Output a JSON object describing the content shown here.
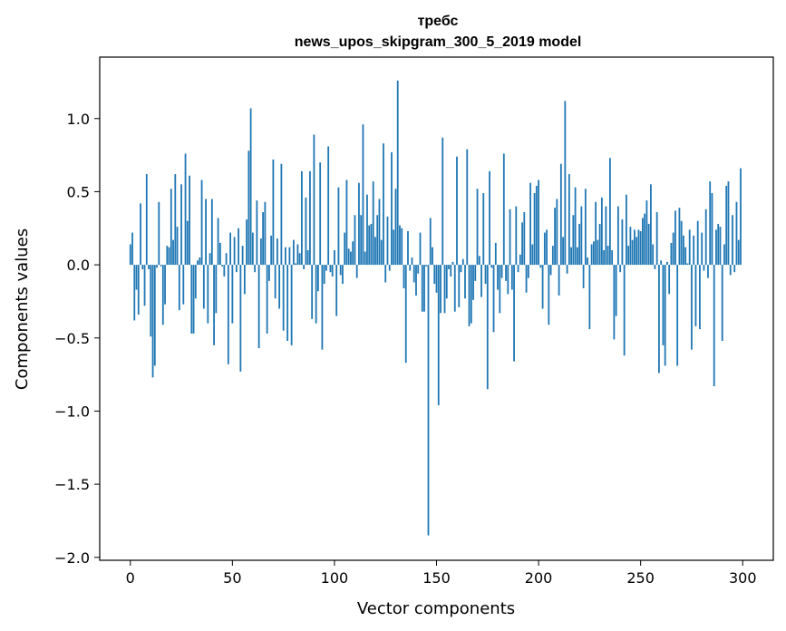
{
  "chart_data": {
    "type": "bar",
    "title": "требс",
    "subtitle": "news_upos_skipgram_300_5_2019 model",
    "xlabel": "Vector components",
    "ylabel": "Components values",
    "xlim": [
      -15,
      315
    ],
    "ylim": [
      -2.02,
      1.42
    ],
    "xticks": [
      0,
      50,
      100,
      150,
      200,
      250,
      300
    ],
    "yticks": [
      -2.0,
      -1.5,
      -1.0,
      -0.5,
      0.0,
      0.5,
      1.0
    ],
    "bar_color": "#1f77b4",
    "grid": false,
    "x_start": 0,
    "values": [
      0.14,
      0.22,
      -0.38,
      -0.17,
      -0.34,
      0.42,
      -0.03,
      -0.28,
      0.62,
      -0.03,
      -0.49,
      -0.77,
      -0.69,
      -0.02,
      0.43,
      -0.01,
      -0.41,
      -0.27,
      0.13,
      0.12,
      0.52,
      0.17,
      0.62,
      0.26,
      -0.31,
      0.55,
      -0.27,
      0.76,
      0.3,
      0.61,
      -0.47,
      -0.47,
      -0.23,
      0.03,
      0.05,
      0.58,
      -0.3,
      0.45,
      -0.4,
      0.08,
      0.45,
      -0.55,
      -0.33,
      0.32,
      0.15,
      -0.01,
      -0.08,
      0.08,
      -0.68,
      0.22,
      -0.4,
      0.19,
      -0.05,
      0.25,
      -0.73,
      0.13,
      -0.2,
      0.31,
      0.78,
      1.07,
      0.22,
      -0.05,
      0.44,
      -0.57,
      0.18,
      0.36,
      0.43,
      -0.47,
      -0.11,
      0.2,
      0.72,
      -0.23,
      0.18,
      -0.3,
      0.69,
      -0.45,
      0.12,
      -0.52,
      0.12,
      -0.55,
      0.17,
      0.01,
      0.14,
      0.08,
      0.64,
      -0.03,
      0.46,
      0.1,
      0.64,
      -0.37,
      0.89,
      -0.4,
      -0.18,
      0.7,
      -0.58,
      -0.13,
      -0.04,
      0.81,
      -0.05,
      -0.08,
      0.1,
      -0.35,
      0.53,
      -0.07,
      -0.13,
      0.22,
      0.58,
      0.11,
      0.09,
      0.16,
      0.34,
      -0.09,
      0.56,
      0.34,
      0.96,
      0.09,
      0.48,
      0.27,
      0.28,
      0.57,
      0.19,
      0.34,
      0.45,
      0.17,
      0.83,
      -0.12,
      0.33,
      -0.04,
      0.77,
      0.24,
      0.52,
      1.26,
      0.27,
      0.25,
      -0.16,
      -0.67,
      0.23,
      -0.04,
      0.05,
      -0.12,
      -0.21,
      -0.06,
      0.22,
      -0.32,
      -0.32,
      -0.01,
      -1.85,
      0.32,
      0.12,
      -0.13,
      -0.19,
      -0.96,
      -0.33,
      0.87,
      -0.33,
      -0.23,
      -0.03,
      -0.08,
      0.02,
      -0.32,
      0.74,
      -0.29,
      -0.05,
      0.04,
      -0.23,
      0.79,
      -0.42,
      -0.4,
      -0.24,
      -0.11,
      0.52,
      0.06,
      -0.22,
      0.49,
      -0.13,
      -0.85,
      0.64,
      -0.02,
      -0.46,
      0.15,
      -0.17,
      -0.33,
      -0.09,
      0.76,
      -0.11,
      -0.2,
      0.38,
      -0.17,
      -0.66,
      0.4,
      -0.05,
      0.07,
      0.29,
      0.36,
      -0.19,
      -0.09,
      0.56,
      0.14,
      0.49,
      0.54,
      0.58,
      -0.02,
      -0.3,
      0.22,
      0.24,
      -0.41,
      -0.07,
      0.13,
      0.39,
      0.45,
      -0.21,
      0.69,
      0.19,
      1.12,
      -0.06,
      0.62,
      0.12,
      0.34,
      0.53,
      0.12,
      0.28,
      0.4,
      -0.16,
      0.52,
      0.05,
      -0.44,
      0.14,
      0.16,
      0.43,
      0.17,
      0.28,
      0.46,
      0.1,
      0.4,
      0.13,
      0.73,
      0.1,
      -0.51,
      -0.35,
      0.4,
      -0.05,
      0.31,
      -0.62,
      0.48,
      0.13,
      0.26,
      0.17,
      0.24,
      0.19,
      0.24,
      0.23,
      0.32,
      0.35,
      0.44,
      0.28,
      0.55,
      0.14,
      -0.03,
      0.36,
      -0.74,
      0.03,
      -0.55,
      -0.69,
      0.02,
      -0.2,
      0.15,
      0.22,
      0.37,
      -0.69,
      0.39,
      0.3,
      0.2,
      0.12,
      0.01,
      0.24,
      -0.58,
      0.2,
      -0.42,
      0.3,
      -0.44,
      0.22,
      -0.04,
      0.38,
      -0.09,
      0.57,
      0.49,
      -0.83,
      0.24,
      0.28,
      0.26,
      -0.52,
      0.14,
      0.54,
      0.57,
      -0.07,
      0.34,
      -0.05,
      0.43,
      0.17,
      0.66
    ]
  }
}
